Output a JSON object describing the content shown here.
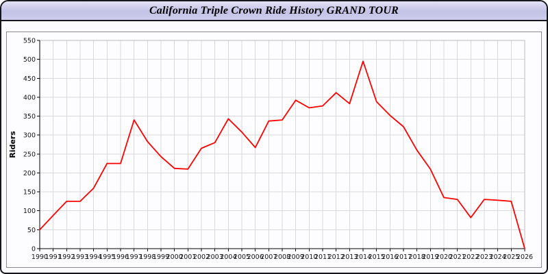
{
  "title": "California Triple Crown Ride History GRAND TOUR",
  "chart_data": {
    "type": "line",
    "title": "California Triple Crown Ride History GRAND TOUR",
    "xlabel": "",
    "ylabel": "Riders",
    "ylim": [
      0,
      550
    ],
    "ytick_step": 50,
    "grid": true,
    "legend": "none",
    "line_color": "#ff0000",
    "x": [
      1990,
      1991,
      1992,
      1993,
      1994,
      1995,
      1996,
      1997,
      1998,
      1999,
      2000,
      2001,
      2002,
      2003,
      2004,
      2005,
      2006,
      2007,
      2008,
      2009,
      2010,
      2011,
      2012,
      2013,
      2014,
      2015,
      2016,
      2017,
      2018,
      2019,
      2020,
      2021,
      2022,
      2023,
      2024,
      2025,
      2026
    ],
    "values": [
      50,
      88,
      125,
      125,
      160,
      225,
      225,
      340,
      283,
      243,
      212,
      210,
      265,
      280,
      343,
      308,
      267,
      337,
      340,
      392,
      372,
      377,
      412,
      383,
      495,
      388,
      352,
      322,
      260,
      210,
      135,
      130,
      82,
      130,
      128,
      125,
      0
    ]
  }
}
